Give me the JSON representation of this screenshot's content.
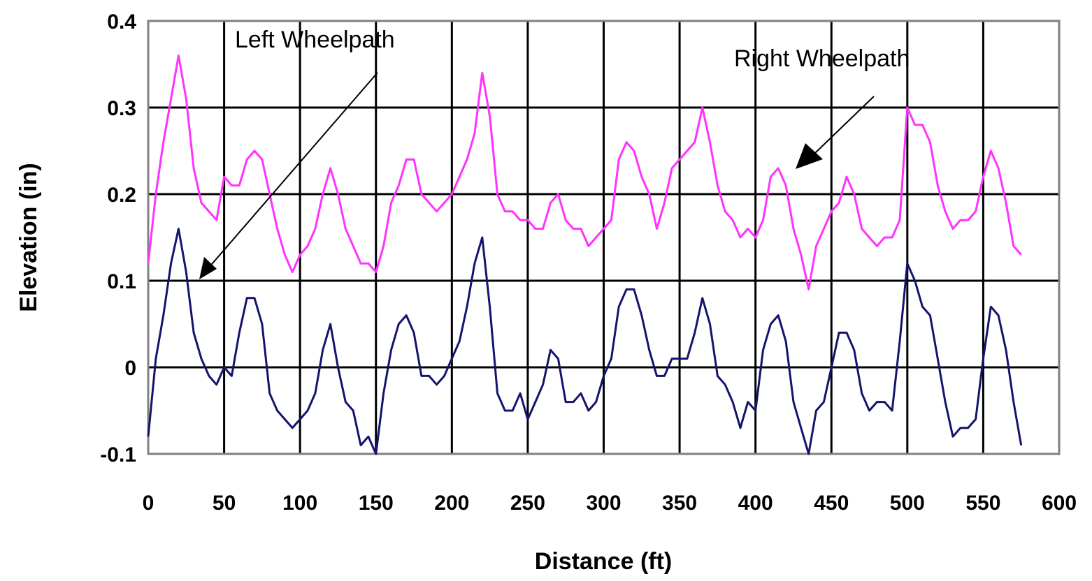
{
  "chart_data": {
    "type": "line",
    "title": "",
    "xlabel": "Distance (ft)",
    "ylabel": "Elevation (in)",
    "xlim": [
      0,
      600
    ],
    "ylim": [
      -0.1,
      0.4
    ],
    "xticks": [
      "0",
      "50",
      "100",
      "150",
      "200",
      "250",
      "300",
      "350",
      "400",
      "450",
      "500",
      "550",
      "600"
    ],
    "yticks": [
      "-0.1",
      "0",
      "0.1",
      "0.2",
      "0.3",
      "0.4"
    ],
    "grid": true,
    "colors": {
      "right": "#ff33ff",
      "left": "#14146e",
      "grid": "#000000",
      "frame": "#808080"
    },
    "annotations": [
      {
        "label": "Left Wheelpath",
        "series": "left"
      },
      {
        "label": "Right Wheelpath",
        "series": "right"
      }
    ],
    "series": [
      {
        "name": "Right Wheelpath",
        "x": [
          0,
          5,
          10,
          15,
          20,
          25,
          30,
          35,
          40,
          45,
          50,
          55,
          60,
          65,
          70,
          75,
          80,
          85,
          90,
          95,
          100,
          105,
          110,
          115,
          120,
          125,
          130,
          135,
          140,
          145,
          150,
          155,
          160,
          165,
          170,
          175,
          180,
          185,
          190,
          195,
          200,
          205,
          210,
          215,
          220,
          225,
          230,
          235,
          240,
          245,
          250,
          255,
          260,
          265,
          270,
          275,
          280,
          285,
          290,
          295,
          300,
          305,
          310,
          315,
          320,
          325,
          330,
          335,
          340,
          345,
          350,
          355,
          360,
          365,
          370,
          375,
          380,
          385,
          390,
          395,
          400,
          405,
          410,
          415,
          420,
          425,
          430,
          435,
          440,
          445,
          450,
          455,
          460,
          465,
          470,
          475,
          480,
          485,
          490,
          495,
          500,
          505,
          510,
          515,
          520,
          525,
          530,
          535,
          540,
          545,
          550,
          555,
          560,
          565,
          570,
          575
        ],
        "y": [
          0.12,
          0.2,
          0.26,
          0.31,
          0.36,
          0.31,
          0.23,
          0.19,
          0.18,
          0.17,
          0.22,
          0.21,
          0.21,
          0.24,
          0.25,
          0.24,
          0.2,
          0.16,
          0.13,
          0.11,
          0.13,
          0.14,
          0.16,
          0.2,
          0.23,
          0.2,
          0.16,
          0.14,
          0.12,
          0.12,
          0.11,
          0.14,
          0.19,
          0.21,
          0.24,
          0.24,
          0.2,
          0.19,
          0.18,
          0.19,
          0.2,
          0.22,
          0.24,
          0.27,
          0.34,
          0.29,
          0.2,
          0.18,
          0.18,
          0.17,
          0.17,
          0.16,
          0.16,
          0.19,
          0.2,
          0.17,
          0.16,
          0.16,
          0.14,
          0.15,
          0.16,
          0.17,
          0.24,
          0.26,
          0.25,
          0.22,
          0.2,
          0.16,
          0.19,
          0.23,
          0.24,
          0.25,
          0.26,
          0.3,
          0.26,
          0.21,
          0.18,
          0.17,
          0.15,
          0.16,
          0.15,
          0.17,
          0.22,
          0.23,
          0.21,
          0.16,
          0.13,
          0.09,
          0.14,
          0.16,
          0.18,
          0.19,
          0.22,
          0.2,
          0.16,
          0.15,
          0.14,
          0.15,
          0.15,
          0.17,
          0.3,
          0.28,
          0.28,
          0.26,
          0.21,
          0.18,
          0.16,
          0.17,
          0.17,
          0.18,
          0.22,
          0.25,
          0.23,
          0.19,
          0.14,
          0.13
        ]
      },
      {
        "name": "Left Wheelpath",
        "x": [
          0,
          5,
          10,
          15,
          20,
          25,
          30,
          35,
          40,
          45,
          50,
          55,
          60,
          65,
          70,
          75,
          80,
          85,
          90,
          95,
          100,
          105,
          110,
          115,
          120,
          125,
          130,
          135,
          140,
          145,
          150,
          155,
          160,
          165,
          170,
          175,
          180,
          185,
          190,
          195,
          200,
          205,
          210,
          215,
          220,
          225,
          230,
          235,
          240,
          245,
          250,
          255,
          260,
          265,
          270,
          275,
          280,
          285,
          290,
          295,
          300,
          305,
          310,
          315,
          320,
          325,
          330,
          335,
          340,
          345,
          350,
          355,
          360,
          365,
          370,
          375,
          380,
          385,
          390,
          395,
          400,
          405,
          410,
          415,
          420,
          425,
          430,
          435,
          440,
          445,
          450,
          455,
          460,
          465,
          470,
          475,
          480,
          485,
          490,
          495,
          500,
          505,
          510,
          515,
          520,
          525,
          530,
          535,
          540,
          545,
          550,
          555,
          560,
          565,
          570,
          575
        ],
        "y": [
          -0.08,
          0.01,
          0.06,
          0.12,
          0.16,
          0.11,
          0.04,
          0.01,
          -0.01,
          -0.02,
          0.0,
          -0.01,
          0.04,
          0.08,
          0.08,
          0.05,
          -0.03,
          -0.05,
          -0.06,
          -0.07,
          -0.06,
          -0.05,
          -0.03,
          0.02,
          0.05,
          0.0,
          -0.04,
          -0.05,
          -0.09,
          -0.08,
          -0.1,
          -0.03,
          0.02,
          0.05,
          0.06,
          0.04,
          -0.01,
          -0.01,
          -0.02,
          -0.01,
          0.01,
          0.03,
          0.07,
          0.12,
          0.15,
          0.07,
          -0.03,
          -0.05,
          -0.05,
          -0.03,
          -0.06,
          -0.04,
          -0.02,
          0.02,
          0.01,
          -0.04,
          -0.04,
          -0.03,
          -0.05,
          -0.04,
          -0.01,
          0.01,
          0.07,
          0.09,
          0.09,
          0.06,
          0.02,
          -0.01,
          -0.01,
          0.01,
          0.01,
          0.01,
          0.04,
          0.08,
          0.05,
          -0.01,
          -0.02,
          -0.04,
          -0.07,
          -0.04,
          -0.05,
          0.02,
          0.05,
          0.06,
          0.03,
          -0.04,
          -0.07,
          -0.1,
          -0.05,
          -0.04,
          0.0,
          0.04,
          0.04,
          0.02,
          -0.03,
          -0.05,
          -0.04,
          -0.04,
          -0.05,
          0.03,
          0.12,
          0.1,
          0.07,
          0.06,
          0.01,
          -0.04,
          -0.08,
          -0.07,
          -0.07,
          -0.06,
          0.01,
          0.07,
          0.06,
          0.02,
          -0.04,
          -0.09
        ]
      }
    ]
  }
}
